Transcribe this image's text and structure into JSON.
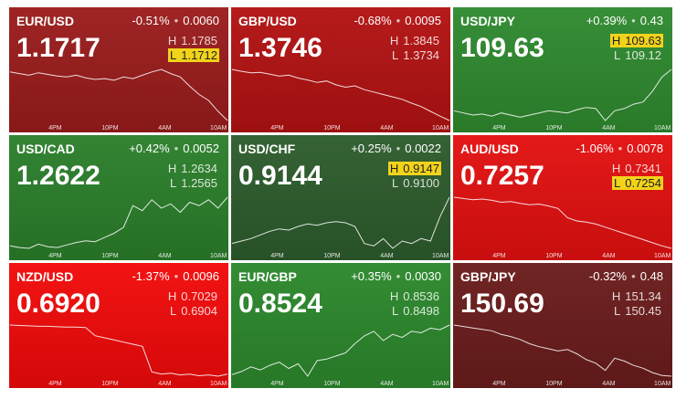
{
  "tiles": [
    {
      "pair": "EUR/USD",
      "change_pct": "-0.51%",
      "change": "0.0060",
      "price": "1.1717",
      "high_label": "H",
      "high": "1.1785",
      "low_label": "L",
      "low": "1.1712",
      "highlight": "low",
      "color": "#9b1c1c",
      "times": [
        "4PM",
        "10PM",
        "4AM",
        "10AM"
      ],
      "spark": [
        1.1772,
        1.177,
        1.1768,
        1.1771,
        1.1769,
        1.1767,
        1.1766,
        1.1768,
        1.1765,
        1.1763,
        1.1764,
        1.1762,
        1.1766,
        1.1764,
        1.1768,
        1.1772,
        1.1775,
        1.177,
        1.1766,
        1.1755,
        1.1745,
        1.1738,
        1.1725,
        1.1714
      ]
    },
    {
      "pair": "GBP/USD",
      "change_pct": "-0.68%",
      "change": "0.0095",
      "price": "1.3746",
      "high_label": "H",
      "high": "1.3845",
      "low_label": "L",
      "low": "1.3734",
      "highlight": "none",
      "color": "#b31212",
      "times": [
        "4PM",
        "10PM",
        "4AM",
        "10AM"
      ],
      "spark": [
        1.3842,
        1.3838,
        1.3835,
        1.3836,
        1.3832,
        1.3828,
        1.383,
        1.3824,
        1.382,
        1.3815,
        1.3818,
        1.381,
        1.3805,
        1.3808,
        1.38,
        1.3795,
        1.379,
        1.3785,
        1.378,
        1.3772,
        1.3765,
        1.3755,
        1.3745,
        1.3736
      ]
    },
    {
      "pair": "USD/JPY",
      "change_pct": "+0.39%",
      "change": "0.43",
      "price": "109.63",
      "high_label": "H",
      "high": "109.63",
      "low_label": "L",
      "low": "109.12",
      "highlight": "high",
      "color": "#2f8a2f",
      "times": [
        "4PM",
        "10PM",
        "4AM",
        "10AM"
      ],
      "spark": [
        109.24,
        109.22,
        109.2,
        109.21,
        109.19,
        109.22,
        109.2,
        109.18,
        109.2,
        109.22,
        109.24,
        109.23,
        109.22,
        109.25,
        109.27,
        109.26,
        109.15,
        109.24,
        109.26,
        109.3,
        109.32,
        109.42,
        109.55,
        109.62
      ]
    },
    {
      "pair": "USD/CAD",
      "change_pct": "+0.42%",
      "change": "0.0052",
      "price": "1.2622",
      "high_label": "H",
      "high": "1.2634",
      "low_label": "L",
      "low": "1.2565",
      "highlight": "none",
      "color": "#2b7f2b",
      "times": [
        "4PM",
        "10PM",
        "4AM",
        "10AM"
      ],
      "spark": [
        1.257,
        1.2568,
        1.2567,
        1.2572,
        1.2569,
        1.2568,
        1.2571,
        1.2574,
        1.2576,
        1.2575,
        1.258,
        1.2585,
        1.2592,
        1.2618,
        1.2612,
        1.2625,
        1.2615,
        1.262,
        1.261,
        1.2622,
        1.2618,
        1.2625,
        1.2615,
        1.2628
      ]
    },
    {
      "pair": "USD/CHF",
      "change_pct": "+0.25%",
      "change": "0.0022",
      "price": "0.9144",
      "high_label": "H",
      "high": "0.9147",
      "low_label": "L",
      "low": "0.9100",
      "highlight": "high",
      "color": "#2d5c2d",
      "times": [
        "4PM",
        "10PM",
        "4AM",
        "10AM"
      ],
      "spark": [
        0.9108,
        0.911,
        0.9112,
        0.9115,
        0.9118,
        0.912,
        0.9119,
        0.9122,
        0.9124,
        0.9123,
        0.9125,
        0.9126,
        0.9125,
        0.9122,
        0.9108,
        0.9106,
        0.9112,
        0.9104,
        0.911,
        0.9108,
        0.9112,
        0.911,
        0.913,
        0.9146
      ]
    },
    {
      "pair": "AUD/USD",
      "change_pct": "-1.06%",
      "change": "0.0078",
      "price": "0.7257",
      "high_label": "H",
      "high": "0.7341",
      "low_label": "L",
      "low": "0.7254",
      "highlight": "low",
      "color": "#e31010",
      "times": [
        "4PM",
        "10PM",
        "4AM",
        "10AM"
      ],
      "spark": [
        0.7338,
        0.7336,
        0.7334,
        0.7335,
        0.7333,
        0.733,
        0.7331,
        0.7328,
        0.7326,
        0.7327,
        0.7324,
        0.732,
        0.7305,
        0.73,
        0.7298,
        0.7295,
        0.729,
        0.7285,
        0.728,
        0.7275,
        0.727,
        0.7265,
        0.726,
        0.7256
      ]
    },
    {
      "pair": "NZD/USD",
      "change_pct": "-1.37%",
      "change": "0.0096",
      "price": "0.6920",
      "high_label": "H",
      "high": "0.7029",
      "low_label": "L",
      "low": "0.6904",
      "highlight": "none",
      "color": "#f20a0a",
      "times": [
        "4PM",
        "10PM",
        "4AM",
        "10AM"
      ],
      "spark": [
        0.7025,
        0.7024,
        0.7023,
        0.7022,
        0.7022,
        0.7021,
        0.702,
        0.702,
        0.7019,
        0.7,
        0.6995,
        0.699,
        0.6985,
        0.698,
        0.6975,
        0.6915,
        0.691,
        0.6912,
        0.6908,
        0.691,
        0.6906,
        0.6908,
        0.6905,
        0.691
      ]
    },
    {
      "pair": "EUR/GBP",
      "change_pct": "+0.35%",
      "change": "0.0030",
      "price": "0.8524",
      "high_label": "H",
      "high": "0.8536",
      "low_label": "L",
      "low": "0.8498",
      "highlight": "none",
      "color": "#2c882c",
      "times": [
        "4PM",
        "10PM",
        "4AM",
        "10AM"
      ],
      "spark": [
        0.85,
        0.8502,
        0.8505,
        0.8503,
        0.8506,
        0.8508,
        0.8504,
        0.8507,
        0.8499,
        0.8509,
        0.851,
        0.8512,
        0.8514,
        0.852,
        0.8525,
        0.8528,
        0.8522,
        0.8526,
        0.8524,
        0.8528,
        0.8527,
        0.853,
        0.8529,
        0.8532
      ]
    },
    {
      "pair": "GBP/JPY",
      "change_pct": "-0.32%",
      "change": "0.48",
      "price": "150.69",
      "high_label": "H",
      "high": "151.34",
      "low_label": "L",
      "low": "150.45",
      "highlight": "none",
      "color": "#6b1c1c",
      "times": [
        "4PM",
        "10PM",
        "4AM",
        "10AM"
      ],
      "spark": [
        151.18,
        151.16,
        151.14,
        151.12,
        151.1,
        151.05,
        151.02,
        150.98,
        150.92,
        150.88,
        150.85,
        150.82,
        150.84,
        150.78,
        150.7,
        150.65,
        150.55,
        150.72,
        150.68,
        150.62,
        150.58,
        150.52,
        150.48,
        150.47
      ]
    }
  ]
}
